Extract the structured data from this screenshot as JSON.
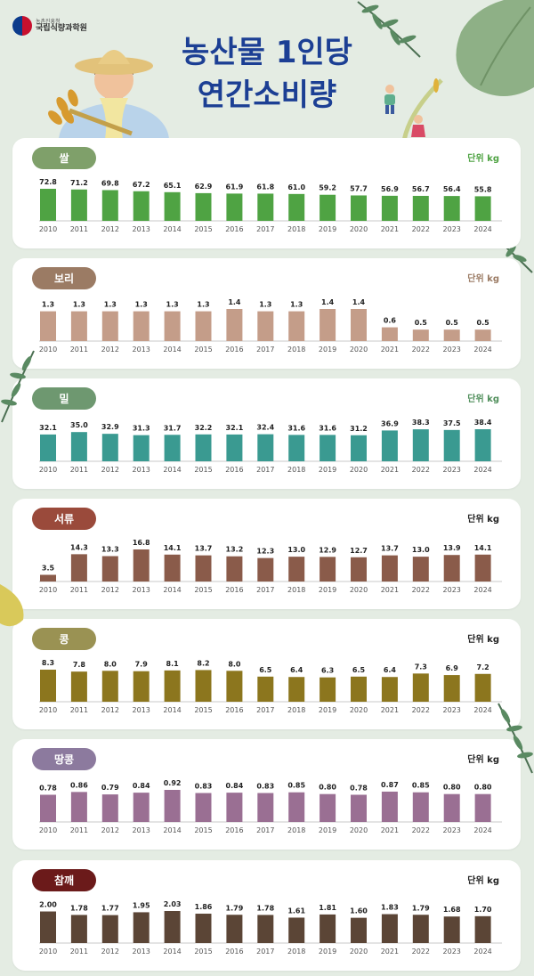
{
  "header": {
    "org_sub": "농촌진흥청",
    "org_name": "국립식량과학원",
    "title_line1": "농산물 1인당",
    "title_line2": "연간소비량"
  },
  "colors": {
    "title": "#1c3f94",
    "background": "#e4ece3"
  },
  "chart_data": [
    {
      "type": "bar",
      "title": "쌀",
      "unit": "단위 kg",
      "color": "#4fa343",
      "pill_color": "#7fa06a",
      "unit_color": "#4fa343",
      "categories": [
        "2010",
        "2011",
        "2012",
        "2013",
        "2014",
        "2015",
        "2016",
        "2017",
        "2018",
        "2019",
        "2020",
        "2021",
        "2022",
        "2023",
        "2024"
      ],
      "labels": [
        "72.8",
        "71.2",
        "69.8",
        "67.2",
        "65.1",
        "62.9",
        "61.9",
        "61.8",
        "61.0",
        "59.2",
        "57.7",
        "56.9",
        "56.7",
        "56.4",
        "55.8"
      ],
      "values": [
        72.8,
        71.2,
        69.8,
        67.2,
        65.1,
        62.9,
        61.9,
        61.8,
        61.0,
        59.2,
        57.7,
        56.9,
        56.7,
        56.4,
        55.8
      ]
    },
    {
      "type": "bar",
      "title": "보리",
      "unit": "단위 kg",
      "color": "#c49d89",
      "pill_color": "#9b7b64",
      "unit_color": "#9b7b64",
      "categories": [
        "2010",
        "2011",
        "2012",
        "2013",
        "2014",
        "2015",
        "2016",
        "2017",
        "2018",
        "2019",
        "2020",
        "2021",
        "2022",
        "2023",
        "2024"
      ],
      "labels": [
        "1.3",
        "1.3",
        "1.3",
        "1.3",
        "1.3",
        "1.3",
        "1.4",
        "1.3",
        "1.3",
        "1.4",
        "1.4",
        "0.6",
        "0.5",
        "0.5",
        "0.5"
      ],
      "values": [
        1.3,
        1.3,
        1.3,
        1.3,
        1.3,
        1.3,
        1.4,
        1.3,
        1.3,
        1.4,
        1.4,
        0.6,
        0.5,
        0.5,
        0.5
      ]
    },
    {
      "type": "bar",
      "title": "밀",
      "unit": "단위 kg",
      "color": "#3a9a91",
      "pill_color": "#6e9870",
      "unit_color": "#4f8e5a",
      "categories": [
        "2010",
        "2011",
        "2012",
        "2013",
        "2014",
        "2015",
        "2016",
        "2017",
        "2018",
        "2019",
        "2020",
        "2021",
        "2022",
        "2023",
        "2024"
      ],
      "labels": [
        "32.1",
        "35.0",
        "32.9",
        "31.3",
        "31.7",
        "32.2",
        "32.1",
        "32.4",
        "31.6",
        "31.6",
        "31.2",
        "36.9",
        "38.3",
        "37.5",
        "38.4"
      ],
      "values": [
        32.1,
        35.0,
        32.9,
        31.3,
        31.7,
        32.2,
        32.1,
        32.4,
        31.6,
        31.6,
        31.2,
        36.9,
        38.3,
        37.5,
        38.4
      ]
    },
    {
      "type": "bar",
      "title": "서류",
      "unit": "단위 kg",
      "color": "#8a5b4a",
      "pill_color": "#9a4a3b",
      "unit_color": "#222222",
      "categories": [
        "2010",
        "2011",
        "2012",
        "2013",
        "2014",
        "2015",
        "2016",
        "2017",
        "2018",
        "2019",
        "2020",
        "2021",
        "2022",
        "2023",
        "2024"
      ],
      "labels": [
        "3.5",
        "14.3",
        "13.3",
        "16.8",
        "14.1",
        "13.7",
        "13.2",
        "12.3",
        "13.0",
        "12.9",
        "12.7",
        "13.7",
        "13.0",
        "13.9",
        "14.1"
      ],
      "values": [
        3.5,
        14.3,
        13.3,
        16.8,
        14.1,
        13.7,
        13.2,
        12.3,
        13.0,
        12.9,
        12.7,
        13.7,
        13.0,
        13.9,
        14.1
      ]
    },
    {
      "type": "bar",
      "title": "콩",
      "unit": "단위 kg",
      "color": "#8c761e",
      "pill_color": "#9a9253",
      "unit_color": "#222222",
      "categories": [
        "2010",
        "2011",
        "2012",
        "2013",
        "2014",
        "2015",
        "2016",
        "2017",
        "2018",
        "2019",
        "2020",
        "2021",
        "2022",
        "2023",
        "2024"
      ],
      "labels": [
        "8.3",
        "7.8",
        "8.0",
        "7.9",
        "8.1",
        "8.2",
        "8.0",
        "6.5",
        "6.4",
        "6.3",
        "6.5",
        "6.4",
        "7.3",
        "6.9",
        "7.2"
      ],
      "values": [
        8.3,
        7.8,
        8.0,
        7.9,
        8.1,
        8.2,
        8.0,
        6.5,
        6.4,
        6.3,
        6.5,
        6.4,
        7.3,
        6.9,
        7.2
      ]
    },
    {
      "type": "bar",
      "title": "땅콩",
      "unit": "단위 kg",
      "color": "#9a6f93",
      "pill_color": "#8c7a9e",
      "unit_color": "#222222",
      "categories": [
        "2010",
        "2011",
        "2012",
        "2013",
        "2014",
        "2015",
        "2016",
        "2017",
        "2018",
        "2019",
        "2020",
        "2021",
        "2022",
        "2023",
        "2024"
      ],
      "labels": [
        "0.78",
        "0.86",
        "0.79",
        "0.84",
        "0.92",
        "0.83",
        "0.84",
        "0.83",
        "0.85",
        "0.80",
        "0.78",
        "0.87",
        "0.85",
        "0.80",
        "0.80"
      ],
      "values": [
        0.78,
        0.86,
        0.79,
        0.84,
        0.92,
        0.83,
        0.84,
        0.83,
        0.85,
        0.8,
        0.78,
        0.87,
        0.85,
        0.8,
        0.8
      ]
    },
    {
      "type": "bar",
      "title": "참깨",
      "unit": "단위 kg",
      "color": "#5b4536",
      "pill_color": "#6b1a1a",
      "unit_color": "#222222",
      "categories": [
        "2010",
        "2011",
        "2012",
        "2013",
        "2014",
        "2015",
        "2016",
        "2017",
        "2018",
        "2019",
        "2020",
        "2021",
        "2022",
        "2023",
        "2024"
      ],
      "labels": [
        "2.00",
        "1.78",
        "1.77",
        "1.95",
        "2.03",
        "1.86",
        "1.79",
        "1.78",
        "1.61",
        "1.81",
        "1.60",
        "1.83",
        "1.79",
        "1.68",
        "1.70"
      ],
      "values": [
        2.0,
        1.78,
        1.77,
        1.95,
        2.03,
        1.86,
        1.79,
        1.78,
        1.61,
        1.81,
        1.6,
        1.83,
        1.79,
        1.68,
        1.7
      ]
    }
  ]
}
